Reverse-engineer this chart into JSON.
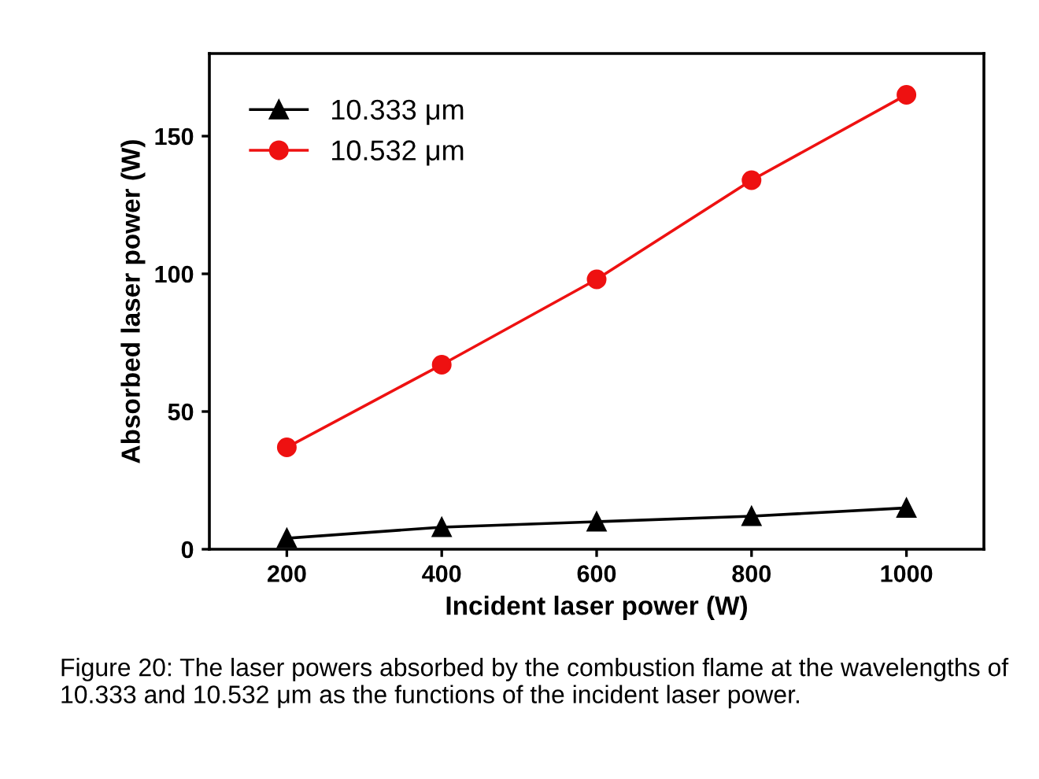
{
  "chart_data": {
    "type": "line",
    "xlabel": "Incident laser power (W)",
    "ylabel": "Absorbed laser power (W)",
    "x": [
      200,
      400,
      600,
      800,
      1000
    ],
    "series": [
      {
        "name": "10.333 μm",
        "color": "#000000",
        "marker": "triangle",
        "values": [
          4,
          8,
          10,
          12,
          15
        ]
      },
      {
        "name": "10.532 μm",
        "color": "#ee1111",
        "marker": "circle",
        "values": [
          37,
          67,
          98,
          134,
          165
        ]
      }
    ],
    "xlim": [
      100,
      1100
    ],
    "xticks": [
      200,
      400,
      600,
      800,
      1000
    ],
    "ylim": [
      0,
      180
    ],
    "yticks": [
      0,
      50,
      100,
      150
    ],
    "grid": false,
    "legend": "top left",
    "line_style": "solid",
    "annotations": [
      "Figure 20: The laser powers absorbed by the combustion flame at the wavelengths of 10.333 and 10.532 μm as the functions of the incident laser power."
    ]
  }
}
